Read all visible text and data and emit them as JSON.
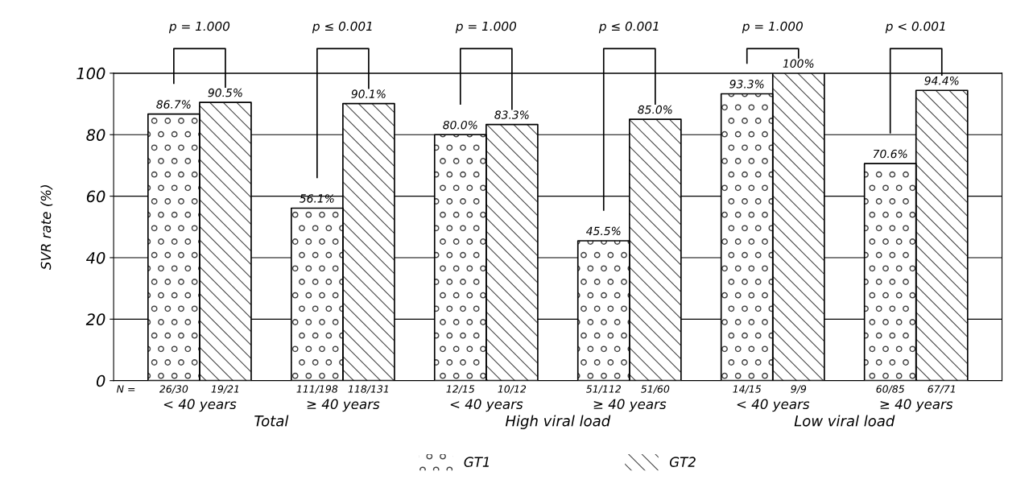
{
  "chart_data": {
    "type": "bar",
    "categories": [
      "< 40 years",
      "≥ 40 years",
      "< 40 years",
      "≥ 40 years",
      "< 40 years",
      "≥ 40 years"
    ],
    "series": [
      {
        "name": "GT1",
        "color": "#ffffff",
        "values": [
          86.7,
          56.1,
          80.0,
          45.5,
          93.3,
          70.6
        ],
        "value_labels": [
          "86.7%",
          "56.1%",
          "80.0%",
          "45.5%",
          "93.3%",
          "70.6%"
        ]
      },
      {
        "name": "GT2",
        "color": "#ffffff",
        "values": [
          90.5,
          90.1,
          83.3,
          85.0,
          100,
          94.4
        ],
        "value_labels": [
          "90.5%",
          "90.1%",
          "83.3%",
          "85.0%",
          "100%",
          "94.4%"
        ]
      }
    ],
    "ylabel": "SVR rate (%)",
    "ylim": [
      0,
      100
    ],
    "yticks": [
      0,
      20,
      40,
      60,
      80,
      100
    ],
    "grid": "y",
    "legend": "bottom",
    "annotations": [
      "p = 1.000",
      "p ≤ 0.001",
      "p = 1.000",
      "p ≤ 0.001",
      "p = 1.000",
      "p < 0.001",
      "N =",
      "26/30",
      "19/21",
      "111/198",
      "118/131",
      "12/15",
      "10/12",
      "51/112",
      "51/60",
      "14/15",
      "9/9",
      "60/85",
      "67/71",
      "Total",
      "High viral load",
      "Low viral load"
    ]
  }
}
